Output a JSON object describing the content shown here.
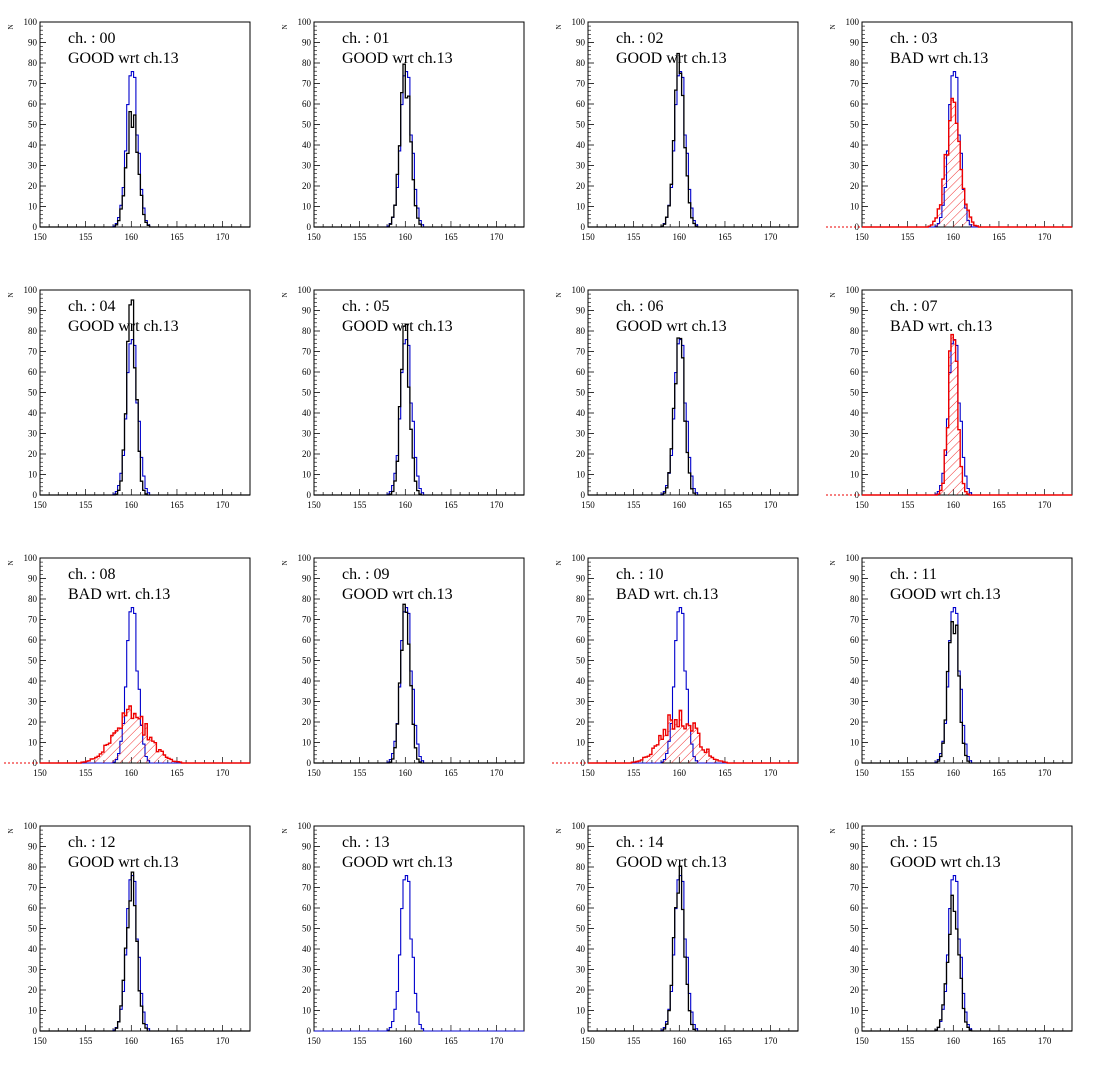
{
  "figure": {
    "grid": {
      "rows": 4,
      "cols": 4
    }
  },
  "colors": {
    "reference": "#0000cc",
    "good": "#000000",
    "bad": "#ee0000",
    "axis": "#000000"
  },
  "chart_data": [
    {
      "type": "histogram",
      "channel_label": "ch. : 00",
      "status_label": "GOOD wrt  ch.13",
      "status": "GOOD",
      "ylabel": "N",
      "xlim": [
        150,
        173
      ],
      "ylim": [
        0,
        100
      ],
      "x_ticks": [
        150,
        155,
        160,
        165,
        170
      ],
      "y_ticks": [
        0,
        10,
        20,
        30,
        40,
        50,
        60,
        70,
        80,
        90,
        100
      ],
      "reference_channel": "ch.13",
      "reference_peak": 72,
      "channel": {
        "mean": 160.1,
        "sigma": 0.62,
        "peak": 54
      }
    },
    {
      "type": "histogram",
      "channel_label": "ch. : 01",
      "status_label": "GOOD wrt  ch.13",
      "status": "GOOD",
      "ylabel": "N",
      "xlim": [
        150,
        173
      ],
      "ylim": [
        0,
        100
      ],
      "x_ticks": [
        150,
        155,
        160,
        165,
        170
      ],
      "y_ticks": [
        0,
        10,
        20,
        30,
        40,
        50,
        60,
        70,
        80,
        90,
        100
      ],
      "reference_channel": "ch.13",
      "reference_peak": 72,
      "channel": {
        "mean": 160.0,
        "sigma": 0.58,
        "peak": 74
      }
    },
    {
      "type": "histogram",
      "channel_label": "ch. : 02",
      "status_label": "GOOD wrt  ch.13",
      "status": "GOOD",
      "ylabel": "N",
      "xlim": [
        150,
        173
      ],
      "ylim": [
        0,
        100
      ],
      "x_ticks": [
        150,
        155,
        160,
        165,
        170
      ],
      "y_ticks": [
        0,
        10,
        20,
        30,
        40,
        50,
        60,
        70,
        80,
        90,
        100
      ],
      "reference_channel": "ch.13",
      "reference_peak": 72,
      "channel": {
        "mean": 160.0,
        "sigma": 0.58,
        "peak": 76
      }
    },
    {
      "type": "histogram",
      "channel_label": "ch. : 03",
      "status_label": "BAD  wrt  ch.13",
      "status": "BAD",
      "ylabel": "N",
      "xlim": [
        150,
        173
      ],
      "ylim": [
        0,
        100
      ],
      "x_ticks": [
        150,
        155,
        160,
        165,
        170
      ],
      "y_ticks": [
        0,
        10,
        20,
        30,
        40,
        50,
        60,
        70,
        80,
        90,
        100
      ],
      "reference_channel": "ch.13",
      "reference_peak": 72,
      "channel": {
        "mean": 160.0,
        "sigma": 0.85,
        "peak": 50
      }
    },
    {
      "type": "histogram",
      "channel_label": "ch. : 04",
      "status_label": "GOOD wrt  ch.13",
      "status": "GOOD",
      "ylabel": "N",
      "xlim": [
        150,
        173
      ],
      "ylim": [
        0,
        100
      ],
      "x_ticks": [
        150,
        155,
        160,
        165,
        170
      ],
      "y_ticks": [
        0,
        10,
        20,
        30,
        40,
        50,
        60,
        70,
        80,
        90,
        100
      ],
      "reference_channel": "ch.13",
      "reference_peak": 72,
      "channel": {
        "mean": 160.0,
        "sigma": 0.5,
        "peak": 91
      }
    },
    {
      "type": "histogram",
      "channel_label": "ch. : 05",
      "status_label": "GOOD wrt  ch.13",
      "status": "GOOD",
      "ylabel": "N",
      "xlim": [
        150,
        173
      ],
      "ylim": [
        0,
        100
      ],
      "x_ticks": [
        150,
        155,
        160,
        165,
        170
      ],
      "y_ticks": [
        0,
        10,
        20,
        30,
        40,
        50,
        60,
        70,
        80,
        90,
        100
      ],
      "reference_channel": "ch.13",
      "reference_peak": 72,
      "channel": {
        "mean": 160.0,
        "sigma": 0.5,
        "peak": 82
      }
    },
    {
      "type": "histogram",
      "channel_label": "ch. : 06",
      "status_label": "GOOD wrt  ch.13",
      "status": "GOOD",
      "ylabel": "N",
      "xlim": [
        150,
        173
      ],
      "ylim": [
        0,
        100
      ],
      "x_ticks": [
        150,
        155,
        160,
        165,
        170
      ],
      "y_ticks": [
        0,
        10,
        20,
        30,
        40,
        50,
        60,
        70,
        80,
        90,
        100
      ],
      "reference_channel": "ch.13",
      "reference_peak": 72,
      "channel": {
        "mean": 160.0,
        "sigma": 0.55,
        "peak": 77
      }
    },
    {
      "type": "histogram",
      "channel_label": "ch. : 07",
      "status_label": "BAD  wrt. ch.13",
      "status": "BAD",
      "ylabel": "N",
      "xlim": [
        150,
        173
      ],
      "ylim": [
        0,
        100
      ],
      "x_ticks": [
        150,
        155,
        160,
        165,
        170
      ],
      "y_ticks": [
        0,
        10,
        20,
        30,
        40,
        50,
        60,
        70,
        80,
        90,
        100
      ],
      "reference_channel": "ch.13",
      "reference_peak": 72,
      "channel": {
        "mean": 160.0,
        "sigma": 0.5,
        "peak": 80
      }
    },
    {
      "type": "histogram",
      "channel_label": "ch. : 08",
      "status_label": "BAD  wrt. ch.13",
      "status": "BAD",
      "ylabel": "N",
      "xlim": [
        150,
        173
      ],
      "ylim": [
        0,
        100
      ],
      "x_ticks": [
        150,
        155,
        160,
        165,
        170
      ],
      "y_ticks": [
        0,
        10,
        20,
        30,
        40,
        50,
        60,
        70,
        80,
        90,
        100
      ],
      "reference_channel": "ch.13",
      "reference_peak": 72,
      "channel": {
        "mean": 160.0,
        "sigma": 1.9,
        "peak": 22
      }
    },
    {
      "type": "histogram",
      "channel_label": "ch. : 09",
      "status_label": "GOOD wrt  ch.13",
      "status": "GOOD",
      "ylabel": "N",
      "xlim": [
        150,
        173
      ],
      "ylim": [
        0,
        100
      ],
      "x_ticks": [
        150,
        155,
        160,
        165,
        170
      ],
      "y_ticks": [
        0,
        10,
        20,
        30,
        40,
        50,
        60,
        70,
        80,
        90,
        100
      ],
      "reference_channel": "ch.13",
      "reference_peak": 72,
      "channel": {
        "mean": 160.0,
        "sigma": 0.5,
        "peak": 82
      }
    },
    {
      "type": "histogram",
      "channel_label": "ch. : 10",
      "status_label": "BAD  wrt. ch.13",
      "status": "BAD",
      "ylabel": "N",
      "xlim": [
        150,
        173
      ],
      "ylim": [
        0,
        100
      ],
      "x_ticks": [
        150,
        155,
        160,
        165,
        170
      ],
      "y_ticks": [
        0,
        10,
        20,
        30,
        40,
        50,
        60,
        70,
        80,
        90,
        100
      ],
      "reference_channel": "ch.13",
      "reference_peak": 72,
      "channel": {
        "mean": 160.0,
        "sigma": 1.8,
        "peak": 24
      }
    },
    {
      "type": "histogram",
      "channel_label": "ch. : 11",
      "status_label": "GOOD wrt  ch.13",
      "status": "GOOD",
      "ylabel": "N",
      "xlim": [
        150,
        173
      ],
      "ylim": [
        0,
        100
      ],
      "x_ticks": [
        150,
        155,
        160,
        165,
        170
      ],
      "y_ticks": [
        0,
        10,
        20,
        30,
        40,
        50,
        60,
        70,
        80,
        90,
        100
      ],
      "reference_channel": "ch.13",
      "reference_peak": 72,
      "channel": {
        "mean": 160.0,
        "sigma": 0.55,
        "peak": 75
      }
    },
    {
      "type": "histogram",
      "channel_label": "ch. : 12",
      "status_label": "GOOD wrt  ch.13",
      "status": "GOOD",
      "ylabel": "N",
      "xlim": [
        150,
        173
      ],
      "ylim": [
        0,
        100
      ],
      "x_ticks": [
        150,
        155,
        160,
        165,
        170
      ],
      "y_ticks": [
        0,
        10,
        20,
        30,
        40,
        50,
        60,
        70,
        80,
        90,
        100
      ],
      "reference_channel": "ch.13",
      "reference_peak": 72,
      "channel": {
        "mean": 160.0,
        "sigma": 0.58,
        "peak": 70
      }
    },
    {
      "type": "histogram",
      "channel_label": "ch. : 13",
      "status_label": "GOOD wrt  ch.13",
      "status": "GOOD",
      "ylabel": "N",
      "xlim": [
        150,
        173
      ],
      "ylim": [
        0,
        100
      ],
      "x_ticks": [
        150,
        155,
        160,
        165,
        170
      ],
      "y_ticks": [
        0,
        10,
        20,
        30,
        40,
        50,
        60,
        70,
        80,
        90,
        100
      ],
      "reference_channel": "ch.13",
      "reference_peak": 72,
      "channel": null
    },
    {
      "type": "histogram",
      "channel_label": "ch. : 14",
      "status_label": "GOOD wrt  ch.13",
      "status": "GOOD",
      "ylabel": "N",
      "xlim": [
        150,
        173
      ],
      "ylim": [
        0,
        100
      ],
      "x_ticks": [
        150,
        155,
        160,
        165,
        170
      ],
      "y_ticks": [
        0,
        10,
        20,
        30,
        40,
        50,
        60,
        70,
        80,
        90,
        100
      ],
      "reference_channel": "ch.13",
      "reference_peak": 72,
      "channel": {
        "mean": 160.0,
        "sigma": 0.55,
        "peak": 77
      }
    },
    {
      "type": "histogram",
      "channel_label": "ch. : 15",
      "status_label": "GOOD wrt  ch.13",
      "status": "GOOD",
      "ylabel": "N",
      "xlim": [
        150,
        173
      ],
      "ylim": [
        0,
        100
      ],
      "x_ticks": [
        150,
        155,
        160,
        165,
        170
      ],
      "y_ticks": [
        0,
        10,
        20,
        30,
        40,
        50,
        60,
        70,
        80,
        90,
        100
      ],
      "reference_channel": "ch.13",
      "reference_peak": 72,
      "channel": {
        "mean": 160.0,
        "sigma": 0.6,
        "peak": 65
      }
    }
  ]
}
